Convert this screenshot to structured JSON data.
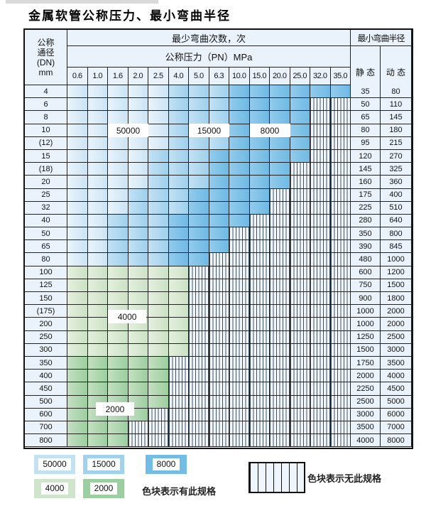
{
  "title": "金属软管公称压力、最小弯曲半径",
  "table": {
    "header": {
      "dn_lines": [
        "公称",
        "通径",
        "(DN)",
        "mm"
      ],
      "bend_cycles": "最少弯曲次数，次",
      "pressure": "公称压力（PN）MPa",
      "min_radius": "最小弯曲半径",
      "static": "静 态",
      "dynamic": "动 态",
      "pressures": [
        "0.6",
        "1.0",
        "1.6",
        "2.0",
        "2.5",
        "4.0",
        "5.0",
        "6.3",
        "10.0",
        "15.0",
        "20.0",
        "25.0",
        "32.0",
        "35.0"
      ]
    },
    "zone_labels": [
      {
        "text": "50000",
        "col": 2.0,
        "span": 2.0,
        "row": 3.5
      },
      {
        "text": "15000",
        "col": 6.0,
        "span": 2.0,
        "row": 3.5
      },
      {
        "text": "8000",
        "col": 9.0,
        "span": 2.0,
        "row": 3.5
      },
      {
        "text": "4000",
        "col": 2.0,
        "span": 1.9,
        "row": 17.9
      },
      {
        "text": "2000",
        "col": 1.4,
        "span": 1.9,
        "row": 25.05
      }
    ],
    "rows": [
      {
        "dn": "4",
        "static": "35",
        "dynamic": "80",
        "family": "blue",
        "last": 13,
        "med": 5,
        "dark": 8
      },
      {
        "dn": "6",
        "static": "50",
        "dynamic": "110",
        "family": "blue",
        "last": 11,
        "med": 5,
        "dark": 8
      },
      {
        "dn": "8",
        "static": "65",
        "dynamic": "145",
        "family": "blue",
        "last": 11,
        "med": 5,
        "dark": 8
      },
      {
        "dn": "10",
        "static": "80",
        "dynamic": "180",
        "family": "blue",
        "last": 11,
        "med": 5,
        "dark": 8
      },
      {
        "dn": "(12)",
        "static": "95",
        "dynamic": "215",
        "family": "blue",
        "last": 11,
        "med": 5,
        "dark": 8
      },
      {
        "dn": "15",
        "static": "120",
        "dynamic": "270",
        "family": "blue",
        "last": 11,
        "med": 4,
        "dark": 7
      },
      {
        "dn": "(18)",
        "static": "145",
        "dynamic": "325",
        "family": "blue",
        "last": 10,
        "med": 4,
        "dark": 7
      },
      {
        "dn": "20",
        "static": "160",
        "dynamic": "360",
        "family": "blue",
        "last": 10,
        "med": 4,
        "dark": 7
      },
      {
        "dn": "25",
        "static": "175",
        "dynamic": "400",
        "family": "blue",
        "last": 9,
        "med": 3,
        "dark": 6
      },
      {
        "dn": "32",
        "static": "225",
        "dynamic": "510",
        "family": "blue",
        "last": 9,
        "med": 3,
        "dark": 6
      },
      {
        "dn": "40",
        "static": "280",
        "dynamic": "640",
        "family": "blue",
        "last": 8,
        "med": 2,
        "dark": 5
      },
      {
        "dn": "50",
        "static": "350",
        "dynamic": "800",
        "family": "blue",
        "last": 7,
        "med": 2,
        "dark": 5
      },
      {
        "dn": "65",
        "static": "390",
        "dynamic": "845",
        "family": "blue",
        "last": 7,
        "med": 2,
        "dark": 5
      },
      {
        "dn": "80",
        "static": "480",
        "dynamic": "1000",
        "family": "blue",
        "last": 6,
        "med": 2,
        "dark": 5
      },
      {
        "dn": "100",
        "static": "600",
        "dynamic": "1200",
        "family": "green_light",
        "last": 5
      },
      {
        "dn": "125",
        "static": "750",
        "dynamic": "1500",
        "family": "green_light",
        "last": 5
      },
      {
        "dn": "150",
        "static": "900",
        "dynamic": "1800",
        "family": "green_light",
        "last": 5
      },
      {
        "dn": "(175)",
        "static": "1000",
        "dynamic": "2000",
        "family": "green_light",
        "last": 5
      },
      {
        "dn": "200",
        "static": "1000",
        "dynamic": "2000",
        "family": "green_light",
        "last": 5
      },
      {
        "dn": "250",
        "static": "1250",
        "dynamic": "2500",
        "family": "green_light",
        "last": 5
      },
      {
        "dn": "300",
        "static": "1500",
        "dynamic": "3000",
        "family": "green_light",
        "last": 5
      },
      {
        "dn": "350",
        "static": "1750",
        "dynamic": "3500",
        "family": "green_dark",
        "last": 4
      },
      {
        "dn": "400",
        "static": "2000",
        "dynamic": "4000",
        "family": "green_dark",
        "last": 4
      },
      {
        "dn": "450",
        "static": "2250",
        "dynamic": "4500",
        "family": "green_dark",
        "last": 4
      },
      {
        "dn": "500",
        "static": "2500",
        "dynamic": "5000",
        "family": "green_dark",
        "last": 4
      },
      {
        "dn": "600",
        "static": "3000",
        "dynamic": "6000",
        "family": "green_dark",
        "last": 3
      },
      {
        "dn": "700",
        "static": "3500",
        "dynamic": "7000",
        "family": "green_dark",
        "last": 2
      },
      {
        "dn": "800",
        "static": "4000",
        "dynamic": "8000",
        "family": "green_dark",
        "last": 2
      }
    ]
  },
  "legend": {
    "has_spec_label": "色块表示有此规格",
    "no_spec_label": "色块表示无此规格",
    "swatches": [
      {
        "value": "50000",
        "type": "blue_light"
      },
      {
        "value": "15000",
        "type": "blue_medium"
      },
      {
        "value": "8000",
        "type": "blue_dark"
      },
      {
        "value": "4000",
        "type": "green_light"
      },
      {
        "value": "2000",
        "type": "green_dark"
      }
    ]
  },
  "colors": {
    "blue_light": "#cbe4f5",
    "blue_medium": "#9ed0ed",
    "blue_dark": "#6ebae5",
    "green_light": "#cbe2c5",
    "green_dark": "#9bcf9f",
    "header_bg": "#eaf3fb",
    "stripe_line": "#3d4f63",
    "stripe_bg": "#f2f8fd",
    "grid_line": "#222222"
  }
}
